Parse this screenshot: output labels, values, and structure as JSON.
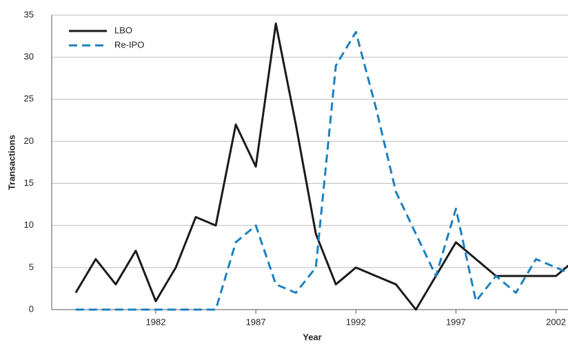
{
  "chart_data": {
    "type": "line",
    "x_label": "Year",
    "y_label": "Transactions",
    "x": [
      1978,
      1979,
      1980,
      1981,
      1982,
      1983,
      1984,
      1985,
      1986,
      1987,
      1988,
      1989,
      1990,
      1991,
      1992,
      1993,
      1994,
      1995,
      1996,
      1997,
      1998,
      1999,
      2000,
      2001,
      2002,
      2003
    ],
    "series": [
      {
        "name": "LBO",
        "color": "#1a1a1a",
        "dash": "solid",
        "values": [
          2,
          6,
          3,
          7,
          1,
          5,
          11,
          10,
          22,
          17,
          34,
          22,
          9,
          3,
          5,
          4,
          3,
          0,
          4,
          8,
          6,
          4,
          4,
          4,
          4,
          6
        ]
      },
      {
        "name": "Re-IPO",
        "color": "#1a7fc1",
        "dash": "dashed",
        "values": [
          0,
          0,
          0,
          0,
          0,
          0,
          0,
          0,
          8,
          10,
          3,
          2,
          5,
          29,
          33,
          24,
          14,
          9,
          4,
          12,
          1,
          4,
          2,
          6,
          5,
          4
        ]
      }
    ],
    "xlim": [
      1976.8,
      2002.6
    ],
    "xticks": [
      1982,
      1987,
      1992,
      1997,
      2002
    ],
    "ylim": [
      0,
      35
    ],
    "yticks": [
      0,
      5,
      10,
      15,
      20,
      25,
      30,
      35
    ],
    "grid": true,
    "legend": "upper left"
  }
}
